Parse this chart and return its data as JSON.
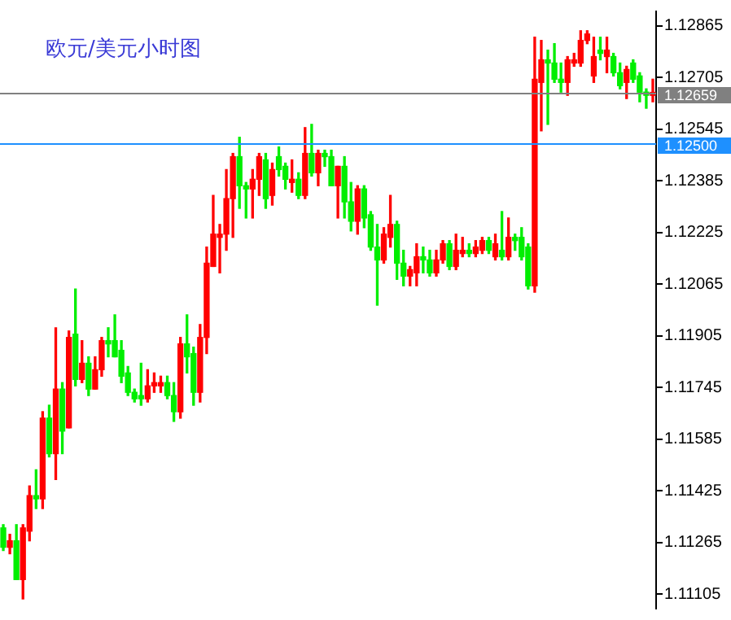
{
  "chart_data": {
    "type": "candlestick",
    "title": "欧元/美元小时图",
    "categories": [
      null,
      null,
      null,
      null,
      null,
      null,
      null,
      null,
      null,
      null,
      null,
      null,
      null,
      null,
      null,
      null,
      null,
      null,
      null,
      null,
      null,
      null,
      null,
      null,
      null,
      null,
      null,
      null,
      null,
      null,
      null,
      null,
      null,
      null,
      null,
      null,
      null,
      null,
      null,
      null,
      null,
      null,
      null,
      null,
      null,
      null,
      null,
      null,
      null,
      null,
      null,
      null,
      null,
      null,
      null,
      null,
      null,
      null,
      null,
      null,
      null,
      null,
      null,
      null,
      null,
      null,
      null,
      null,
      null,
      null,
      null,
      null,
      null,
      null,
      null,
      null,
      null,
      null,
      null,
      null,
      null,
      null,
      null,
      null,
      null,
      null,
      null,
      null,
      null,
      null,
      null,
      null,
      null,
      null,
      null,
      null,
      null,
      null,
      null,
      null
    ],
    "ohlc": [
      [
        1.1131,
        1.1132,
        1.1124,
        1.1125
      ],
      [
        1.1125,
        1.1129,
        1.1123,
        1.1127
      ],
      [
        1.1127,
        1.1132,
        1.1115,
        1.1115
      ],
      [
        1.1115,
        1.1132,
        1.1109,
        1.1131
      ],
      [
        1.113,
        1.1144,
        1.1127,
        1.1141
      ],
      [
        1.1141,
        1.1149,
        1.1137,
        1.114
      ],
      [
        1.114,
        1.1167,
        1.1137,
        1.1165
      ],
      [
        1.1165,
        1.1169,
        1.1153,
        1.1154
      ],
      [
        1.1154,
        1.1193,
        1.1146,
        1.1174
      ],
      [
        1.1174,
        1.1176,
        1.1154,
        1.1161
      ],
      [
        1.1162,
        1.1192,
        1.1162,
        1.119
      ],
      [
        1.1191,
        1.1205,
        1.1175,
        1.1177
      ],
      [
        1.1177,
        1.1189,
        1.1176,
        1.1182
      ],
      [
        1.1182,
        1.1184,
        1.1172,
        1.1174
      ],
      [
        1.1174,
        1.1184,
        1.1174,
        1.118
      ],
      [
        1.118,
        1.119,
        1.1178,
        1.1189
      ],
      [
        1.1189,
        1.1193,
        1.1184,
        1.1188
      ],
      [
        1.1189,
        1.1197,
        1.1184,
        1.1184
      ],
      [
        1.1186,
        1.1189,
        1.1176,
        1.1178
      ],
      [
        1.1179,
        1.1181,
        1.1172,
        1.1173
      ],
      [
        1.1173,
        1.1174,
        1.117,
        1.1171
      ],
      [
        1.1172,
        1.1182,
        1.1169,
        1.1171
      ],
      [
        1.1171,
        1.118,
        1.117,
        1.1175
      ],
      [
        1.1175,
        1.1179,
        1.1173,
        1.1176
      ],
      [
        1.1175,
        1.1178,
        1.1173,
        1.1176
      ],
      [
        1.1176,
        1.1178,
        1.1171,
        1.1172
      ],
      [
        1.1172,
        1.1176,
        1.1164,
        1.1167
      ],
      [
        1.1167,
        1.119,
        1.1165,
        1.1188
      ],
      [
        1.1188,
        1.1197,
        1.1179,
        1.1184
      ],
      [
        1.1185,
        1.1187,
        1.1169,
        1.1173
      ],
      [
        1.1173,
        1.1194,
        1.117,
        1.119
      ],
      [
        1.119,
        1.1218,
        1.1185,
        1.1213
      ],
      [
        1.1212,
        1.1234,
        1.1212,
        1.1222
      ],
      [
        1.1221,
        1.1225,
        1.121,
        1.1222
      ],
      [
        1.1222,
        1.1242,
        1.1217,
        1.1233
      ],
      [
        1.1233,
        1.1247,
        1.1221,
        1.1246
      ],
      [
        1.1246,
        1.1252,
        1.123,
        1.1237
      ],
      [
        1.1237,
        1.1238,
        1.1227,
        1.1236
      ],
      [
        1.1236,
        1.1242,
        1.1227,
        1.1239
      ],
      [
        1.1239,
        1.1247,
        1.1234,
        1.1246
      ],
      [
        1.1245,
        1.1247,
        1.123,
        1.1233
      ],
      [
        1.1234,
        1.1244,
        1.1231,
        1.1242
      ],
      [
        1.1246,
        1.1249,
        1.124,
        1.1242
      ],
      [
        1.1243,
        1.1244,
        1.1236,
        1.1239
      ],
      [
        1.1238,
        1.1245,
        1.1235,
        1.1239
      ],
      [
        1.1239,
        1.1241,
        1.1233,
        1.1234
      ],
      [
        1.1234,
        1.1255,
        1.1233,
        1.1247
      ],
      [
        1.1247,
        1.1256,
        1.124,
        1.1241
      ],
      [
        1.1241,
        1.1248,
        1.1237,
        1.1247
      ],
      [
        1.1247,
        1.1248,
        1.1243,
        1.1246
      ],
      [
        1.1246,
        1.1248,
        1.1237,
        1.1237
      ],
      [
        1.1237,
        1.1243,
        1.1227,
        1.1243
      ],
      [
        1.1243,
        1.1246,
        1.1227,
        1.1232
      ],
      [
        1.1232,
        1.1238,
        1.1223,
        1.1226
      ],
      [
        1.1226,
        1.1237,
        1.1222,
        1.1236
      ],
      [
        1.1236,
        1.1237,
        1.1224,
        1.1227
      ],
      [
        1.1228,
        1.1229,
        1.1217,
        1.1218
      ],
      [
        1.1218,
        1.1225,
        1.12,
        1.1214
      ],
      [
        1.1214,
        1.1224,
        1.1213,
        1.1222
      ],
      [
        1.1221,
        1.1234,
        1.1218,
        1.1225
      ],
      [
        1.1225,
        1.1226,
        1.1208,
        1.1213
      ],
      [
        1.1213,
        1.1217,
        1.1206,
        1.1209
      ],
      [
        1.1209,
        1.1212,
        1.1206,
        1.1211
      ],
      [
        1.121,
        1.1219,
        1.1206,
        1.1215
      ],
      [
        1.1215,
        1.1218,
        1.121,
        1.1214
      ],
      [
        1.1214,
        1.1217,
        1.1209,
        1.121
      ],
      [
        1.121,
        1.1217,
        1.1209,
        1.1214
      ],
      [
        1.1214,
        1.122,
        1.1213,
        1.1219
      ],
      [
        1.1219,
        1.122,
        1.1211,
        1.1212
      ],
      [
        1.1212,
        1.1222,
        1.1211,
        1.1217
      ],
      [
        1.1216,
        1.1221,
        1.1215,
        1.1217
      ],
      [
        1.1217,
        1.1219,
        1.1215,
        1.1216
      ],
      [
        1.1216,
        1.122,
        1.1215,
        1.1218
      ],
      [
        1.1217,
        1.1221,
        1.1216,
        1.122
      ],
      [
        1.122,
        1.1221,
        1.1216,
        1.1217
      ],
      [
        1.1215,
        1.1222,
        1.1214,
        1.1219
      ],
      [
        1.1217,
        1.1229,
        1.1214,
        1.1215
      ],
      [
        1.1215,
        1.1227,
        1.1214,
        1.1221
      ],
      [
        1.1221,
        1.1222,
        1.1217,
        1.122
      ],
      [
        1.1221,
        1.1224,
        1.1214,
        1.1215
      ],
      [
        1.1218,
        1.1219,
        1.1205,
        1.1206
      ],
      [
        1.1206,
        1.1283,
        1.1204,
        1.127
      ],
      [
        1.1269,
        1.1282,
        1.1254,
        1.1276
      ],
      [
        1.1276,
        1.1279,
        1.1256,
        1.1275
      ],
      [
        1.1275,
        1.1281,
        1.1269,
        1.127
      ],
      [
        1.127,
        1.1275,
        1.1266,
        1.1269
      ],
      [
        1.1269,
        1.1277,
        1.1265,
        1.1276
      ],
      [
        1.1275,
        1.1278,
        1.1274,
        1.1276
      ],
      [
        1.1275,
        1.1285,
        1.1274,
        1.1282
      ],
      [
        1.1282,
        1.1285,
        1.1281,
        1.1284
      ],
      [
        1.1271,
        1.1283,
        1.1269,
        1.1277
      ],
      [
        1.1279,
        1.1283,
        1.1276,
        1.1278
      ],
      [
        1.1277,
        1.1283,
        1.1272,
        1.1279
      ],
      [
        1.1277,
        1.1278,
        1.1271,
        1.1272
      ],
      [
        1.1272,
        1.1275,
        1.1267,
        1.1268
      ],
      [
        1.1269,
        1.1274,
        1.1264,
        1.1273
      ],
      [
        1.1275,
        1.1276,
        1.1269,
        1.127
      ],
      [
        1.1271,
        1.1272,
        1.1263,
        1.1266
      ],
      [
        1.1266,
        1.1267,
        1.1261,
        1.1265
      ],
      [
        1.1265,
        1.127,
        1.1263,
        1.12659
      ]
    ],
    "colors": [
      "#00ee00",
      "#ff0000",
      "#00ee00",
      "#ff0000",
      "#ff0000",
      "#00ee00",
      "#ff0000",
      "#00ee00",
      "#ff0000",
      "#00ee00",
      "#ff0000",
      "#00ee00",
      "#ff0000",
      "#00ee00",
      "#ff0000",
      "#ff0000",
      "#00ee00",
      "#00ee00",
      "#00ee00",
      "#00ee00",
      "#00ee00",
      "#00ee00",
      "#ff0000",
      "#ff0000",
      "#ff0000",
      "#00ee00",
      "#00ee00",
      "#ff0000",
      "#00ee00",
      "#00ee00",
      "#ff0000",
      "#ff0000",
      "#ff0000",
      "#ff0000",
      "#ff0000",
      "#ff0000",
      "#00ee00",
      "#00ee00",
      "#ff0000",
      "#ff0000",
      "#00ee00",
      "#ff0000",
      "#00ee00",
      "#00ee00",
      "#ff0000",
      "#00ee00",
      "#ff0000",
      "#00ee00",
      "#ff0000",
      "#00ee00",
      "#00ee00",
      "#ff0000",
      "#00ee00",
      "#00ee00",
      "#ff0000",
      "#00ee00",
      "#00ee00",
      "#00ee00",
      "#ff0000",
      "#ff0000",
      "#00ee00",
      "#00ee00",
      "#ff0000",
      "#ff0000",
      "#00ee00",
      "#00ee00",
      "#ff0000",
      "#ff0000",
      "#00ee00",
      "#ff0000",
      "#ff0000",
      "#00ee00",
      "#ff0000",
      "#ff0000",
      "#00ee00",
      "#ff0000",
      "#00ee00",
      "#ff0000",
      "#00ee00",
      "#00ee00",
      "#00ee00",
      "#ff0000",
      "#ff0000",
      "#00ee00",
      "#00ee00",
      "#00ee00",
      "#ff0000",
      "#ff0000",
      "#ff0000",
      "#ff0000",
      "#ff0000",
      "#00ee00",
      "#ff0000",
      "#00ee00",
      "#00ee00",
      "#ff0000",
      "#00ee00",
      "#00ee00",
      "#00ee00",
      "#ff0000"
    ],
    "ylim": [
      1.1106,
      1.1291
    ],
    "yticks": [
      1.12865,
      1.12705,
      1.12545,
      1.12385,
      1.12225,
      1.12065,
      1.11905,
      1.11745,
      1.11585,
      1.11425,
      1.11265,
      1.11105
    ],
    "tick_labels": "y",
    "grid": false,
    "legend": false,
    "ref_lines": [
      {
        "axis": "y",
        "value": 1.12659,
        "label": "1.12659",
        "color": "#808080"
      },
      {
        "axis": "y",
        "value": 1.125,
        "label": "1.12500",
        "color": "#1e90ff"
      }
    ]
  }
}
